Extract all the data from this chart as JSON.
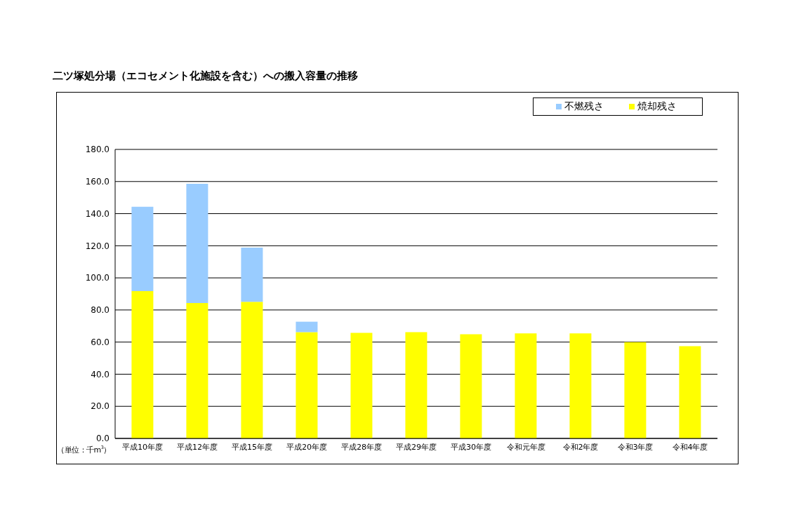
{
  "chart_data": {
    "type": "bar",
    "title": "二ツ塚処分場（エコセメント化施設を含む）への搬入容量の推移",
    "categories": [
      "平成10年度",
      "平成12年度",
      "平成15年度",
      "平成20年度",
      "平成28年度",
      "平成29年度",
      "平成30年度",
      "令和元年度",
      "令和2年度",
      "令和3年度",
      "令和4年度"
    ],
    "series": [
      {
        "name": "焼却残さ",
        "color": "#ffff00",
        "values": [
          91.7,
          84.3,
          85.1,
          66.2,
          65.8,
          66.2,
          64.9,
          65.4,
          65.4,
          60.0,
          57.5
        ]
      },
      {
        "name": "不燃残さ",
        "color": "#99ccff",
        "values": [
          52.6,
          74.3,
          33.7,
          6.5,
          null,
          null,
          null,
          null,
          null,
          null,
          null
        ]
      }
    ],
    "stacked": true,
    "ylim": [
      0,
      180
    ],
    "yticks": [
      {
        "value": 0,
        "label": "0.0"
      },
      {
        "value": 20,
        "label": "20.0"
      },
      {
        "value": 40,
        "label": "40.0"
      },
      {
        "value": 60,
        "label": "60.0"
      },
      {
        "value": 80,
        "label": "80.0"
      },
      {
        "value": 100,
        "label": "100.0"
      },
      {
        "value": 120,
        "label": "120.0"
      },
      {
        "value": 140,
        "label": "140.0"
      },
      {
        "value": 160,
        "label": "160.0"
      },
      {
        "value": 180,
        "label": "180.0"
      }
    ],
    "grid": "y",
    "legend": "top right",
    "annotations": [
      "（単位：千m$^{3}$）"
    ]
  }
}
